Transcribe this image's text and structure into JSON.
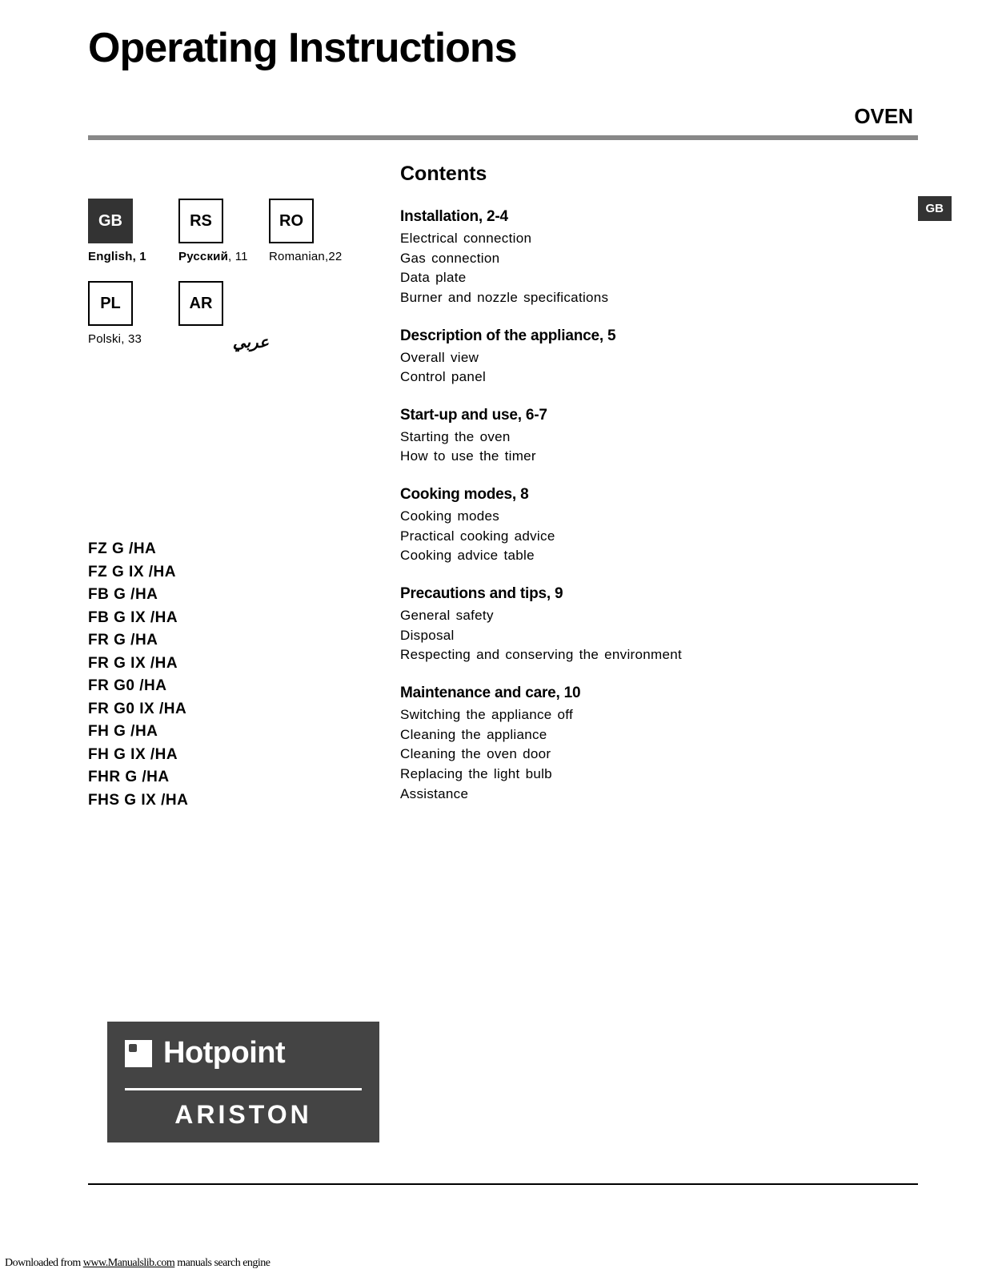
{
  "header": {
    "title": "Operating Instructions",
    "subtitle": "OVEN"
  },
  "side_badge": "GB",
  "languages": [
    {
      "code": "GB",
      "active": true,
      "label_bold": "English, 1",
      "label_plain": ""
    },
    {
      "code": "RS",
      "active": false,
      "label_bold": "Русский",
      "label_plain": ", 11"
    },
    {
      "code": "RO",
      "active": false,
      "label_bold": "",
      "label_plain": "Romanian,22"
    },
    {
      "code": "PL",
      "active": false,
      "label_bold": "",
      "label_plain": "Polski, 33"
    },
    {
      "code": "AR",
      "active": false,
      "label_bold": "",
      "label_plain": "عربي",
      "ar": true
    }
  ],
  "models": [
    "FZ G /HA",
    "FZ G IX /HA",
    "FB G /HA",
    "FB G IX /HA",
    "FR G /HA",
    "FR G IX /HA",
    "FR G0 /HA",
    "FR G0 IX /HA",
    "FH G /HA",
    "FH G IX /HA",
    "FHR G /HA",
    "FHS G IX /HA"
  ],
  "contents": {
    "title": "Contents",
    "sections": [
      {
        "heading": "Installation, 2-4",
        "items": [
          "Electrical connection",
          "Gas connection",
          "Data plate",
          "Burner and nozzle specifications"
        ]
      },
      {
        "heading": "Description of the appliance, 5",
        "items": [
          "Overall view",
          "Control panel"
        ]
      },
      {
        "heading": "Start-up and use, 6-7",
        "items": [
          "Starting the oven",
          "How to use the timer"
        ]
      },
      {
        "heading": "Cooking modes, 8",
        "items": [
          "Cooking modes",
          "Practical cooking advice",
          "Cooking advice table"
        ]
      },
      {
        "heading": "Precautions and tips, 9",
        "items": [
          "General safety",
          "Disposal",
          "Respecting and conserving the environment"
        ]
      },
      {
        "heading": "Maintenance and care, 10",
        "items": [
          "Switching the appliance off",
          "Cleaning the appliance",
          "Cleaning the oven door",
          "Replacing the light bulb",
          "Assistance"
        ]
      }
    ]
  },
  "logo": {
    "brand1": "Hotpoint",
    "brand2": "ARISTON"
  },
  "footer": {
    "prefix": "Downloaded from ",
    "link_text": "www.Manualslib.com",
    "suffix": " manuals search engine"
  }
}
